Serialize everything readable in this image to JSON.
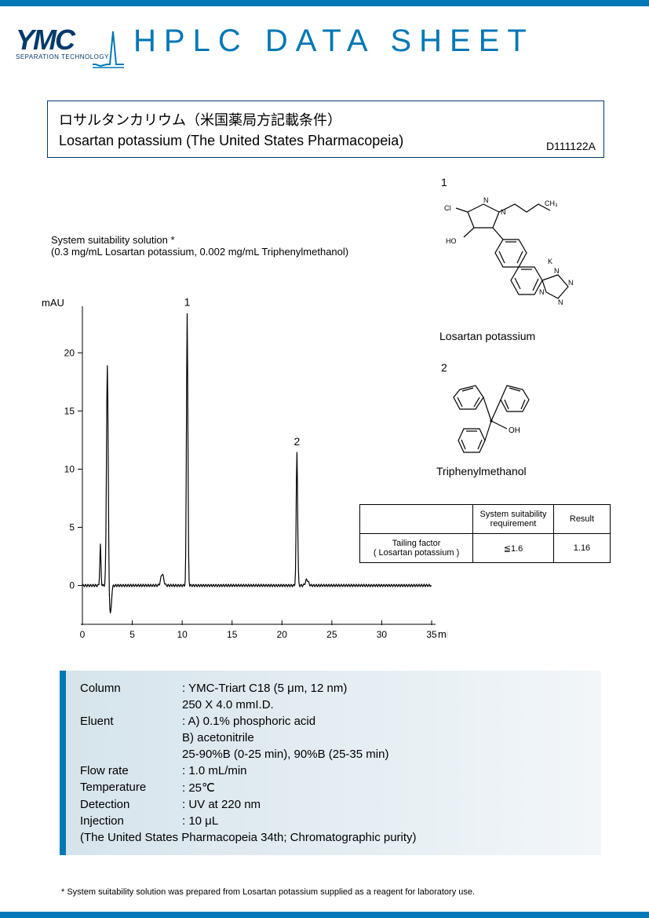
{
  "logo": {
    "main": "YMC",
    "sub": "SEPARATION TECHNOLOGY"
  },
  "header": "HPLC DATA SHEET",
  "title": {
    "jp": "ロサルタンカリウム（米国薬局方記載条件）",
    "en": "Losartan potassium (The United States Pharmacopeia)",
    "doc_id": "D111122A"
  },
  "solution": {
    "line1": "System suitability solution *",
    "line2": "(0.3 mg/mL Losartan potassium, 0.002 mg/mL Triphenylmethanol)"
  },
  "structures": {
    "s1": {
      "num": "1",
      "name": "Losartan potassium"
    },
    "s2": {
      "num": "2",
      "name": "Triphenylmethanol"
    }
  },
  "chromatogram": {
    "type": "line",
    "y_label": "mAU",
    "x_label": "min",
    "y_ticks": [
      0,
      5,
      10,
      15,
      20
    ],
    "x_ticks": [
      0,
      5,
      10,
      15,
      20,
      25,
      30,
      35
    ],
    "ylim": [
      -3,
      24
    ],
    "xlim": [
      0,
      35
    ],
    "line_color": "#000000",
    "label_fontsize": 13,
    "tick_fontsize": 12,
    "peak1": {
      "label": "1",
      "rt": 10.5,
      "height": 23.5
    },
    "peak2": {
      "label": "2",
      "rt": 21.5,
      "height": 11.5
    },
    "solvent_peak_rt": 2.5,
    "solvent_peak_height": 19,
    "solvent_dip_rt": 2.8,
    "solvent_dip_depth": -2.5
  },
  "result_table": {
    "columns": [
      "",
      "System  suitability requirement",
      "Result"
    ],
    "rows": [
      [
        "Tailing factor\n( Losartan potassium )",
        "≦1.6",
        "1.16"
      ]
    ]
  },
  "conditions": {
    "column_k": "Column",
    "column_v1": ": YMC-Triart C18 (5 μm, 12 nm)",
    "column_v2": "  250 X 4.0 mmI.D.",
    "eluent_k": "Eluent",
    "eluent_v1": ": A) 0.1% phosphoric acid",
    "eluent_v2": "  B) acetonitrile",
    "eluent_v3": "  25-90%B (0-25 min), 90%B (25-35 min)",
    "flow_k": "Flow rate",
    "flow_v": ": 1.0 mL/min",
    "temp_k": "Temperature",
    "temp_v": ": 25℃",
    "det_k": "Detection",
    "det_v": ": UV at 220 nm",
    "inj_k": "Injection",
    "inj_v": ": 10 μL",
    "ref": "(The United States Pharmacopeia 34th; Chromatographic purity)"
  },
  "footnote": " * System suitability solution was prepared from Losartan potassium supplied as a reagent for laboratory use."
}
